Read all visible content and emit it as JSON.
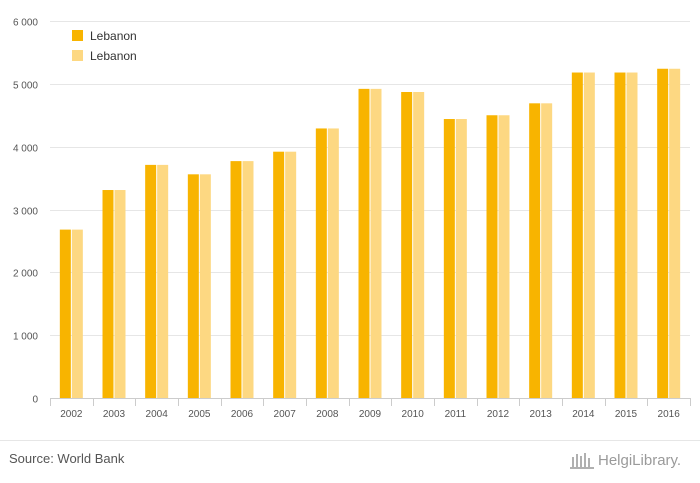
{
  "chart_data": {
    "type": "bar",
    "categories": [
      "2002",
      "2003",
      "2004",
      "2005",
      "2006",
      "2007",
      "2008",
      "2009",
      "2010",
      "2011",
      "2012",
      "2013",
      "2014",
      "2015",
      "2016"
    ],
    "series": [
      {
        "name": "Lebanon",
        "color": "#f8b400",
        "values": [
          2680,
          3310,
          3710,
          3560,
          3770,
          3920,
          4290,
          4920,
          4870,
          4440,
          4500,
          4690,
          5180,
          5180,
          5240
        ]
      },
      {
        "name": "Lebanon",
        "color": "#fdd882",
        "values": [
          2680,
          3310,
          3710,
          3560,
          3770,
          3920,
          4290,
          4920,
          4870,
          4440,
          4500,
          4690,
          5180,
          5180,
          5240
        ]
      }
    ],
    "ylim": [
      0,
      6000
    ],
    "yticks": [
      0,
      1000,
      2000,
      3000,
      4000,
      5000,
      6000
    ],
    "ytick_labels": [
      "0",
      "1 000",
      "2 000",
      "3 000",
      "4 000",
      "5 000",
      "6 000"
    ],
    "grid": true,
    "legend_position": "top-left"
  },
  "footer": {
    "source": "Source: World Bank",
    "logo_text": "HelgiLibrary."
  },
  "icons": {
    "logo": "helgi-library-logo-icon"
  },
  "colors": {
    "grid": "#e6e6e6",
    "axis_text": "#555555"
  }
}
